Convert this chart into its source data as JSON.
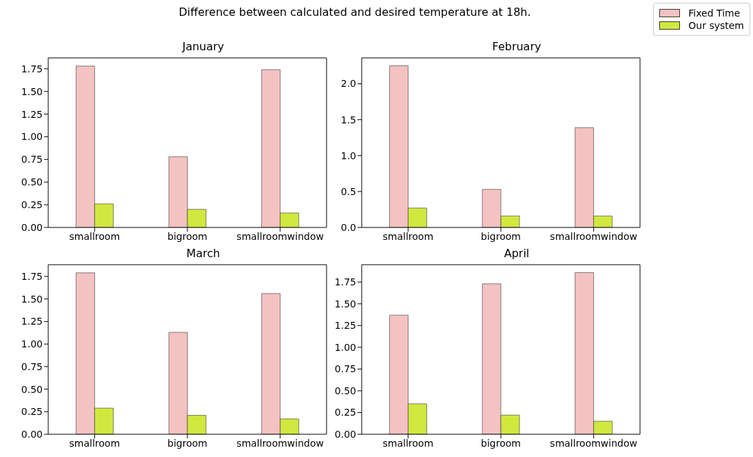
{
  "chart_data": [
    {
      "type": "bar",
      "title": "January",
      "annotations": [
        "Difference between calculated and desired temperature at 18h."
      ],
      "legend": "top right",
      "categories": [
        "smallroom",
        "bigroom",
        "smallroomwindow"
      ],
      "series": [
        {
          "name": "Fixed Time",
          "color": "#f4c2c2",
          "values": [
            1.78,
            0.78,
            1.74
          ]
        },
        {
          "name": "Our system",
          "color": "#d1e83f",
          "values": [
            0.26,
            0.2,
            0.16
          ]
        }
      ],
      "ylim": [
        0,
        1.87
      ],
      "yticks": [
        {
          "value": 0,
          "label": "0.00"
        },
        {
          "value": 0.25,
          "label": "0.25"
        },
        {
          "value": 0.5,
          "label": "0.50"
        },
        {
          "value": 0.75,
          "label": "0.75"
        },
        {
          "value": 1,
          "label": "1.00"
        },
        {
          "value": 1.25,
          "label": "1.25"
        },
        {
          "value": 1.5,
          "label": "1.50"
        },
        {
          "value": 1.75,
          "label": "1.75"
        }
      ],
      "grid": false
    },
    {
      "type": "bar",
      "title": "February",
      "categories": [
        "smallroom",
        "bigroom",
        "smallroomwindow"
      ],
      "series": [
        {
          "color": "#f4c2c2",
          "values": [
            2.25,
            0.53,
            1.39
          ]
        },
        {
          "color": "#d1e83f",
          "values": [
            0.27,
            0.16,
            0.16
          ]
        }
      ],
      "ylim": [
        0,
        2.36
      ],
      "yticks": [
        {
          "value": 0,
          "label": "0.0"
        },
        {
          "value": 0.5,
          "label": "0.5"
        },
        {
          "value": 1,
          "label": "1.0"
        },
        {
          "value": 1.5,
          "label": "1.5"
        },
        {
          "value": 2,
          "label": "2.0"
        }
      ],
      "grid": false
    },
    {
      "type": "bar",
      "title": "March",
      "categories": [
        "smallroom",
        "bigroom",
        "smallroomwindow"
      ],
      "series": [
        {
          "color": "#f4c2c2",
          "values": [
            1.79,
            1.13,
            1.56
          ]
        },
        {
          "color": "#d1e83f",
          "values": [
            0.29,
            0.21,
            0.17
          ]
        }
      ],
      "ylim": [
        0,
        1.88
      ],
      "yticks": [
        {
          "value": 0,
          "label": "0.00"
        },
        {
          "value": 0.25,
          "label": "0.25"
        },
        {
          "value": 0.5,
          "label": "0.50"
        },
        {
          "value": 0.75,
          "label": "0.75"
        },
        {
          "value": 1,
          "label": "1.00"
        },
        {
          "value": 1.25,
          "label": "1.25"
        },
        {
          "value": 1.5,
          "label": "1.50"
        },
        {
          "value": 1.75,
          "label": "1.75"
        }
      ],
      "grid": false
    },
    {
      "type": "bar",
      "title": "April",
      "categories": [
        "smallroom",
        "bigroom",
        "smallroomwindow"
      ],
      "series": [
        {
          "color": "#f4c2c2",
          "values": [
            1.37,
            1.73,
            1.86
          ]
        },
        {
          "color": "#d1e83f",
          "values": [
            0.35,
            0.22,
            0.15
          ]
        }
      ],
      "ylim": [
        0,
        1.95
      ],
      "yticks": [
        {
          "value": 0,
          "label": "0.00"
        },
        {
          "value": 0.25,
          "label": "0.25"
        },
        {
          "value": 0.5,
          "label": "0.50"
        },
        {
          "value": 0.75,
          "label": "0.75"
        },
        {
          "value": 1,
          "label": "1.00"
        },
        {
          "value": 1.25,
          "label": "1.25"
        },
        {
          "value": 1.5,
          "label": "1.50"
        },
        {
          "value": 1.75,
          "label": "1.75"
        }
      ],
      "grid": false
    }
  ]
}
